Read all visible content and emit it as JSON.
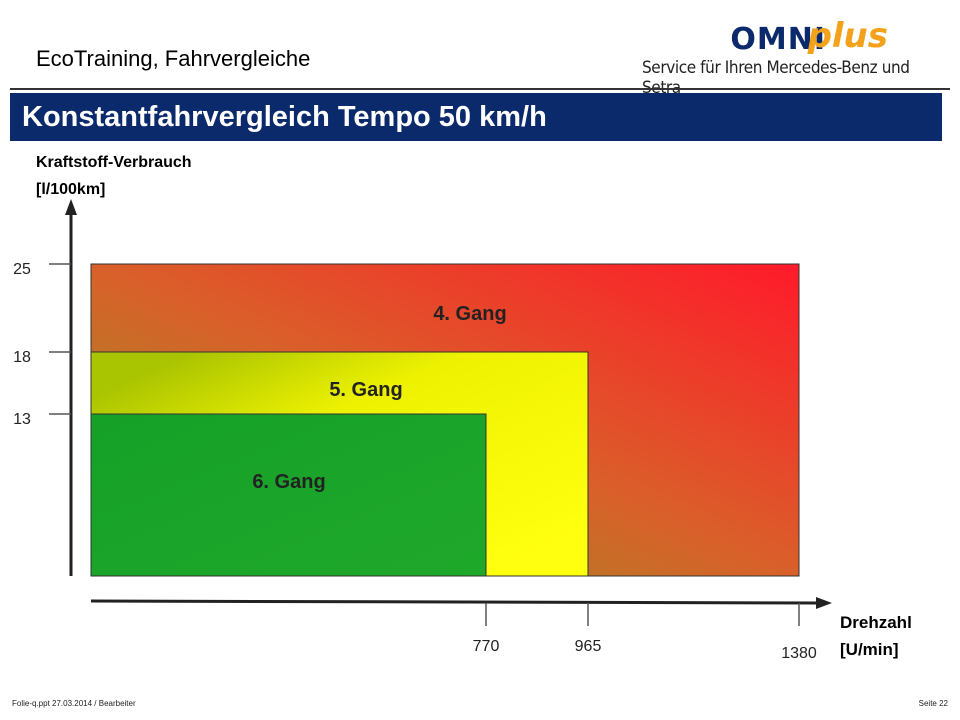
{
  "header": {
    "subtitle": "EcoTraining, Fahrvergleiche",
    "title": "Konstantfahrvergleich Tempo 50 km/h"
  },
  "logo": {
    "brand_main": "OMNI",
    "brand_accent": "plus",
    "tagline": "Service für Ihren Mercedes-Benz und Setra",
    "colors": {
      "main": "#0b2a6b",
      "accent": "#f4a21b"
    }
  },
  "footer": {
    "left": "Folie-q.ppt   27.03.2014   / Bearbeiter",
    "right": "Seite 22"
  },
  "chart_data": {
    "type": "area",
    "ylabel_line1": "Kraftstoff-Verbrauch",
    "ylabel_line2": "[l/100km]",
    "xlabel_line1": "Drehzahl",
    "xlabel_line2": "[U/min]",
    "y_ticks": [
      25,
      18,
      13
    ],
    "x_ticks": [
      770,
      965,
      1380
    ],
    "series": [
      {
        "name": "4. Gang",
        "drehzahl": 1380,
        "verbrauch": 25,
        "color": "#e33a2a"
      },
      {
        "name": "5. Gang",
        "drehzahl": 965,
        "verbrauch": 18,
        "color": "#f5f500"
      },
      {
        "name": "6. Gang",
        "drehzahl": 770,
        "verbrauch": 13,
        "color": "#1aa526"
      }
    ],
    "grid": false
  }
}
